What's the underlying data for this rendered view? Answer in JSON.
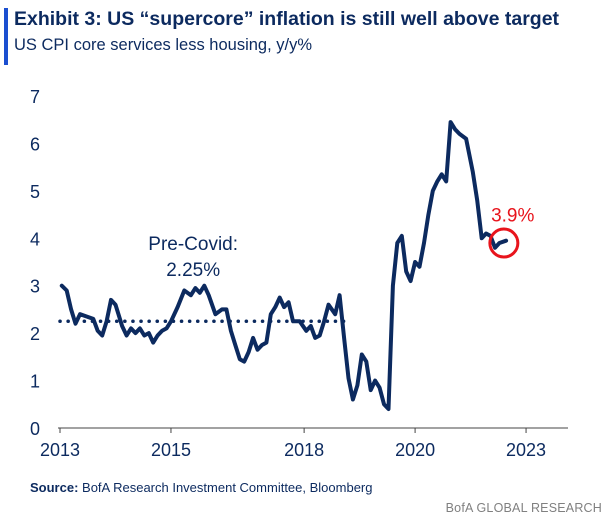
{
  "header": {
    "title": "Exhibit 3: US “supercore” inflation is still well above target",
    "subtitle": "US CPI core services less housing, y/y%"
  },
  "footer": {
    "source_label": "Source:",
    "source_text": " BofA Research Investment Committee, Bloomberg",
    "brand": "BofA GLOBAL RESEARCH"
  },
  "colors": {
    "accent": "#1b4fd0",
    "series": "#0c2a5f",
    "highlight": "#e8141c",
    "text": "#0c2a5f"
  },
  "chart_data": {
    "type": "line",
    "title": "",
    "xlabel": "",
    "ylabel": "",
    "ylim": [
      0,
      7
    ],
    "xlim": [
      2013.0,
      2024.4
    ],
    "x_ticks": [
      {
        "value": 2013,
        "label": "2013"
      },
      {
        "value": 2015.5,
        "label": "2015"
      },
      {
        "value": 2018.5,
        "label": "2018"
      },
      {
        "value": 2021,
        "label": "2020"
      },
      {
        "value": 2023.5,
        "label": "2023"
      }
    ],
    "y_ticks": [
      0,
      1,
      2,
      3,
      4,
      5,
      6,
      7
    ],
    "series": [
      {
        "name": "",
        "points": [
          [
            2013.04,
            3.0
          ],
          [
            2013.15,
            2.9
          ],
          [
            2013.25,
            2.5
          ],
          [
            2013.35,
            2.2
          ],
          [
            2013.45,
            2.4
          ],
          [
            2013.6,
            2.35
          ],
          [
            2013.75,
            2.3
          ],
          [
            2013.85,
            2.05
          ],
          [
            2013.95,
            1.95
          ],
          [
            2014.05,
            2.25
          ],
          [
            2014.15,
            2.7
          ],
          [
            2014.25,
            2.6
          ],
          [
            2014.4,
            2.15
          ],
          [
            2014.5,
            1.95
          ],
          [
            2014.6,
            2.1
          ],
          [
            2014.7,
            2.0
          ],
          [
            2014.8,
            2.1
          ],
          [
            2014.9,
            1.95
          ],
          [
            2015.0,
            2.0
          ],
          [
            2015.1,
            1.8
          ],
          [
            2015.2,
            1.95
          ],
          [
            2015.3,
            2.05
          ],
          [
            2015.4,
            2.1
          ],
          [
            2015.5,
            2.25
          ],
          [
            2015.65,
            2.55
          ],
          [
            2015.8,
            2.9
          ],
          [
            2015.95,
            2.8
          ],
          [
            2016.05,
            2.95
          ],
          [
            2016.15,
            2.85
          ],
          [
            2016.25,
            3.0
          ],
          [
            2016.35,
            2.8
          ],
          [
            2016.5,
            2.4
          ],
          [
            2016.65,
            2.5
          ],
          [
            2016.75,
            2.5
          ],
          [
            2016.85,
            2.05
          ],
          [
            2016.95,
            1.75
          ],
          [
            2017.05,
            1.45
          ],
          [
            2017.15,
            1.4
          ],
          [
            2017.25,
            1.6
          ],
          [
            2017.35,
            1.9
          ],
          [
            2017.45,
            1.65
          ],
          [
            2017.55,
            1.75
          ],
          [
            2017.65,
            1.8
          ],
          [
            2017.75,
            2.4
          ],
          [
            2017.85,
            2.55
          ],
          [
            2017.95,
            2.75
          ],
          [
            2018.05,
            2.55
          ],
          [
            2018.15,
            2.65
          ],
          [
            2018.25,
            2.25
          ],
          [
            2018.4,
            2.25
          ],
          [
            2018.55,
            2.05
          ],
          [
            2018.65,
            2.15
          ],
          [
            2018.75,
            1.9
          ],
          [
            2018.85,
            1.95
          ],
          [
            2018.95,
            2.25
          ],
          [
            2019.05,
            2.6
          ],
          [
            2019.2,
            2.4
          ],
          [
            2019.3,
            2.8
          ],
          [
            2019.4,
            1.9
          ],
          [
            2019.5,
            1.05
          ],
          [
            2019.6,
            0.6
          ],
          [
            2019.7,
            0.9
          ],
          [
            2019.8,
            1.55
          ],
          [
            2019.9,
            1.4
          ],
          [
            2020.0,
            0.8
          ],
          [
            2020.1,
            1.0
          ],
          [
            2020.2,
            0.85
          ],
          [
            2020.3,
            0.5
          ],
          [
            2020.4,
            0.4
          ],
          [
            2020.5,
            3.0
          ],
          [
            2020.6,
            3.9
          ],
          [
            2020.7,
            4.05
          ],
          [
            2020.8,
            3.3
          ],
          [
            2020.9,
            3.1
          ],
          [
            2021.0,
            3.5
          ],
          [
            2021.1,
            3.4
          ],
          [
            2021.2,
            3.9
          ],
          [
            2021.3,
            4.5
          ],
          [
            2021.4,
            5.0
          ],
          [
            2021.5,
            5.2
          ],
          [
            2021.6,
            5.35
          ],
          [
            2021.7,
            5.2
          ],
          [
            2021.8,
            6.45
          ],
          [
            2021.9,
            6.3
          ],
          [
            2022.0,
            6.2
          ],
          [
            2022.15,
            6.1
          ],
          [
            2022.3,
            5.4
          ],
          [
            2022.4,
            4.8
          ],
          [
            2022.5,
            4.0
          ],
          [
            2022.6,
            4.1
          ],
          [
            2022.7,
            4.05
          ],
          [
            2022.8,
            3.8
          ],
          [
            2022.9,
            3.9
          ],
          [
            2023.05,
            3.95
          ]
        ]
      }
    ],
    "reference_line": {
      "y": 2.25,
      "x_from": 2013.0,
      "x_to": 2019.4,
      "style": "dotted"
    },
    "annotations": [
      {
        "text": "Pre-Covid:",
        "x": 2016.0,
        "y": 3.75
      },
      {
        "text": "2.25%",
        "x": 2016.0,
        "y": 3.2
      },
      {
        "text": "3.9%",
        "x": 2023.2,
        "y": 4.35,
        "color": "red"
      }
    ],
    "highlight_point": {
      "x": 2023.0,
      "y": 3.9
    }
  }
}
